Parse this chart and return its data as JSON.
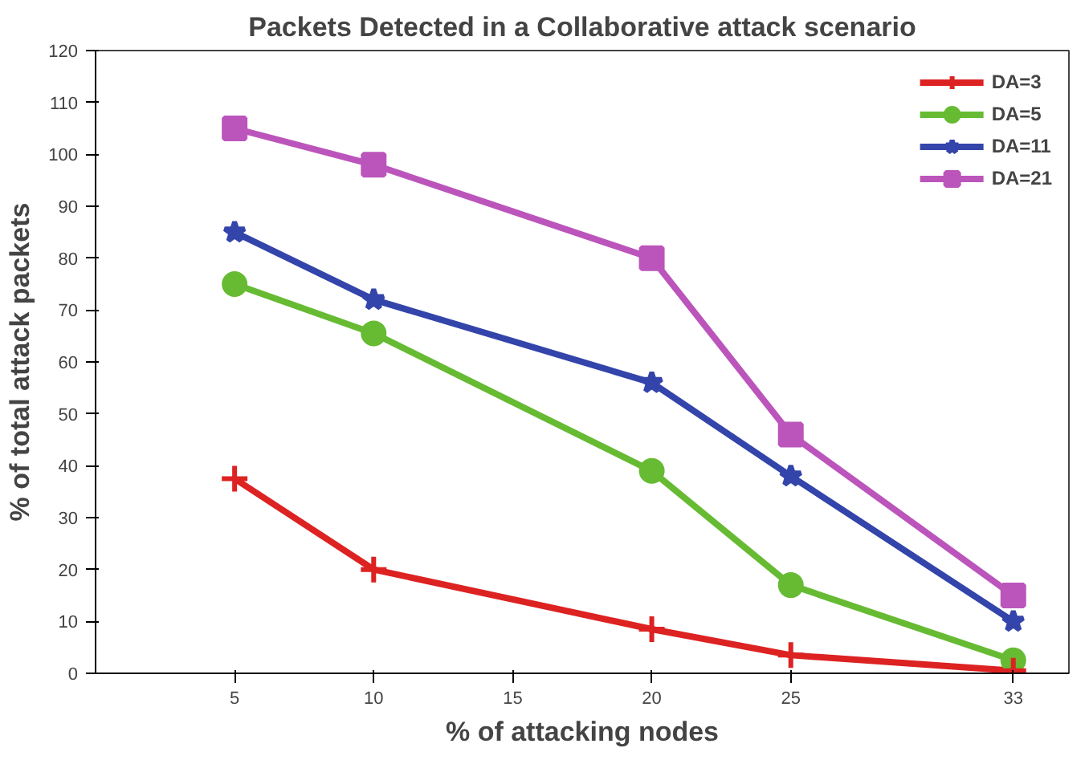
{
  "chart_data": {
    "type": "line",
    "title": "Packets Detected in a Collaborative attack scenario",
    "xlabel": "% of attacking nodes",
    "ylabel": "% of total attack packets",
    "x": [
      5,
      10,
      20,
      25,
      33
    ],
    "xlim": [
      0,
      35
    ],
    "xticks": [
      5,
      10,
      15,
      20,
      25,
      33
    ],
    "ylim": [
      0,
      120
    ],
    "yticks": [
      0,
      10,
      20,
      30,
      40,
      50,
      60,
      70,
      80,
      90,
      100,
      110,
      120
    ],
    "grid": false,
    "legend": "top right",
    "line_style": "solid",
    "series": [
      {
        "name": "DA=3",
        "color": "#dd2222",
        "marker": "cross",
        "values": [
          37.5,
          20,
          8.5,
          3.5,
          0.5
        ]
      },
      {
        "name": "DA=5",
        "color": "#66bb33",
        "marker": "circle",
        "values": [
          75,
          65.5,
          39,
          17,
          2.5
        ]
      },
      {
        "name": "DA=11",
        "color": "#3344aa",
        "marker": "star",
        "values": [
          85,
          72,
          56,
          38,
          10
        ]
      },
      {
        "name": "DA=21",
        "color": "#bb55bb",
        "marker": "square",
        "values": [
          105,
          98,
          80,
          46,
          15
        ]
      }
    ]
  }
}
